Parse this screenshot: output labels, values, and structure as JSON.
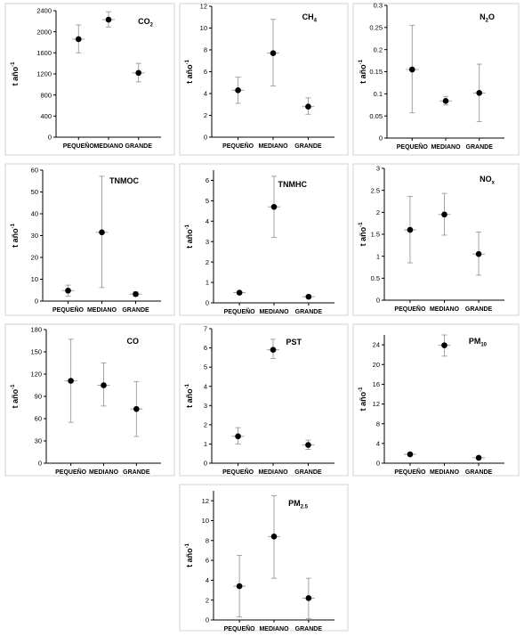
{
  "figure": {
    "ylabel": "t año",
    "ylabel_sup": "-1"
  },
  "chart_data": [
    {
      "type": "scatter",
      "title": "CO",
      "title_sub": "2",
      "categories": [
        "PEQUEÑO",
        "MEDIANO",
        "GRANDE"
      ],
      "series": [
        {
          "values": [
            1860,
            2230,
            1220
          ],
          "err_low": [
            1600,
            2090,
            1050
          ],
          "err_high": [
            2130,
            2380,
            1400
          ]
        }
      ],
      "ylim": [
        0,
        2400
      ],
      "yticks": [
        "0",
        "400",
        "800",
        "1200",
        "1600",
        "2000",
        "2400"
      ],
      "ylabel": "t año-1",
      "xlabel": ""
    },
    {
      "type": "scatter",
      "title": "CH",
      "title_sub": "4",
      "categories": [
        "PEQUEÑO",
        "MEDIANO",
        "GRANDE"
      ],
      "series": [
        {
          "values": [
            4.3,
            7.7,
            2.8
          ],
          "err_low": [
            3.1,
            4.7,
            2.1
          ],
          "err_high": [
            5.5,
            10.8,
            3.6
          ]
        }
      ],
      "ylim": [
        0,
        12
      ],
      "yticks": [
        "0",
        "2",
        "4",
        "6",
        "8",
        "10",
        "12"
      ],
      "ylabel": "t año-1",
      "xlabel": ""
    },
    {
      "type": "scatter",
      "title": "N",
      "title_sub": "2",
      "title_after": "O",
      "categories": [
        "PEQUEÑO",
        "MEDIANO",
        "GRANDE"
      ],
      "series": [
        {
          "values": [
            0.155,
            0.084,
            0.102
          ],
          "err_low": [
            0.057,
            0.075,
            0.037
          ],
          "err_high": [
            0.255,
            0.094,
            0.167
          ]
        }
      ],
      "ylim": [
        0,
        0.3
      ],
      "yticks": [
        "0",
        "0.05",
        "0.1",
        "0.15",
        "0.2",
        "0.25",
        "0.3"
      ],
      "ylabel": "t año-1",
      "xlabel": ""
    },
    {
      "type": "scatter",
      "title": "TNMOC",
      "title_sub": "",
      "categories": [
        "PEQUEÑO",
        "MEDIANO",
        "GRANDE"
      ],
      "series": [
        {
          "values": [
            4.8,
            31.5,
            3.2
          ],
          "err_low": [
            2.2,
            6.2,
            2.2
          ],
          "err_high": [
            7.3,
            57.2,
            4.2
          ]
        }
      ],
      "ylim": [
        0,
        60
      ],
      "yticks": [
        "0",
        "10",
        "20",
        "30",
        "40",
        "50",
        "60"
      ],
      "ylabel": "t año-1",
      "xlabel": ""
    },
    {
      "type": "scatter",
      "title": "TNMHC",
      "title_sub": "",
      "categories": [
        "PEQUEÑO",
        "MEDIANO",
        "GRANDE"
      ],
      "series": [
        {
          "values": [
            0.5,
            4.7,
            0.3
          ],
          "err_low": [
            0.45,
            3.2,
            0.27
          ],
          "err_high": [
            0.55,
            6.2,
            0.33
          ]
        }
      ],
      "ylim": [
        0,
        6.5
      ],
      "yticks": [
        "0",
        "1",
        "2",
        "3",
        "4",
        "5",
        "6"
      ],
      "ylabel": "t año-1",
      "xlabel": ""
    },
    {
      "type": "scatter",
      "title": "NO",
      "title_sub": "x",
      "categories": [
        "PEQUEÑO",
        "MEDIANO",
        "GRANDE"
      ],
      "series": [
        {
          "values": [
            1.6,
            1.95,
            1.05
          ],
          "err_low": [
            0.85,
            1.48,
            0.57
          ],
          "err_high": [
            2.36,
            2.43,
            1.55
          ]
        }
      ],
      "ylim": [
        0,
        3
      ],
      "yticks": [
        "0",
        "0.5",
        "1",
        "1.5",
        "2",
        "2.5",
        "3"
      ],
      "ylabel": "t año-1",
      "xlabel": ""
    },
    {
      "type": "scatter",
      "title": "CO",
      "title_sub": "",
      "categories": [
        "PEQUEÑO",
        "MEDIANO",
        "GRANDE"
      ],
      "series": [
        {
          "values": [
            111,
            105,
            73
          ],
          "err_low": [
            55,
            77,
            36
          ],
          "err_high": [
            167,
            135,
            110
          ]
        }
      ],
      "ylim": [
        0,
        180
      ],
      "yticks": [
        "0",
        "30",
        "60",
        "90",
        "120",
        "150",
        "180"
      ],
      "ylabel": "t año-1",
      "xlabel": ""
    },
    {
      "type": "scatter",
      "title": "PST",
      "title_sub": "",
      "categories": [
        "PEQUEÑO",
        "MEDIANO",
        "GRANDE"
      ],
      "series": [
        {
          "values": [
            1.4,
            5.9,
            0.95
          ],
          "err_low": [
            1.0,
            5.45,
            0.72
          ],
          "err_high": [
            1.85,
            6.45,
            1.2
          ]
        }
      ],
      "ylim": [
        0,
        7
      ],
      "yticks": [
        "0",
        "1",
        "2",
        "3",
        "4",
        "5",
        "6",
        "7"
      ],
      "ylabel": "t año-1",
      "xlabel": ""
    },
    {
      "type": "scatter",
      "title": "PM",
      "title_sub": "10",
      "categories": [
        "PEQUEÑO",
        "MEDIANO",
        "GRANDE"
      ],
      "series": [
        {
          "values": [
            1.8,
            23.9,
            1.1
          ],
          "err_low": [
            1.6,
            21.7,
            0.9
          ],
          "err_high": [
            2.0,
            26.0,
            1.3
          ]
        }
      ],
      "ylim": [
        0,
        26
      ],
      "yticks": [
        "0",
        "4",
        "8",
        "12",
        "16",
        "20",
        "24"
      ],
      "ylabel": "t año-1",
      "xlabel": ""
    },
    {
      "type": "scatter",
      "title": "PM",
      "title_sub": "2.5",
      "categories": [
        "PEQUEÑO",
        "MEDIANO",
        "GRANDE"
      ],
      "series": [
        {
          "values": [
            3.4,
            8.4,
            2.2
          ],
          "err_low": [
            0.3,
            4.2,
            0.15
          ],
          "err_high": [
            6.5,
            12.5,
            4.2
          ]
        }
      ],
      "ylim": [
        0,
        13
      ],
      "yticks": [
        "0",
        "2",
        "4",
        "6",
        "8",
        "10",
        "12"
      ],
      "ylabel": "t año-1",
      "xlabel": ""
    }
  ]
}
